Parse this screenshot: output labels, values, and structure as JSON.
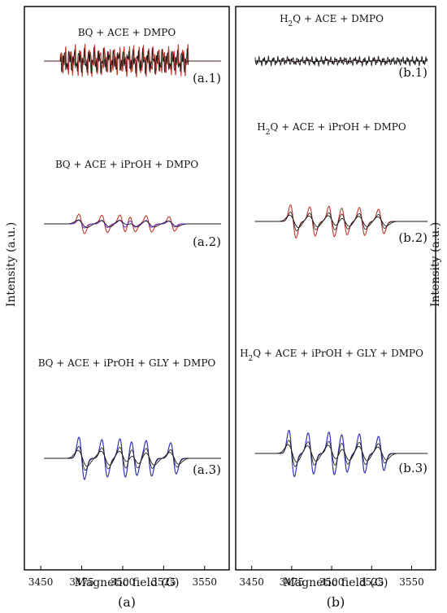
{
  "figure": {
    "ylabel": "Intensity (a.u.)",
    "xlabel": "Magnetic field (G)"
  },
  "colors": {
    "red": "#c0392b",
    "black": "#1a1a1a",
    "blue": "#1f3ad6",
    "purple": "#6a2bd8",
    "frame": "#000000"
  },
  "chart_data": [
    {
      "id": "a",
      "type": "line",
      "caption": "(a)",
      "xlabel": "Magnetic field (G)",
      "ylabel": "Intensity (a.u.)",
      "xlim": [
        3440,
        3565
      ],
      "xticks": [
        3450,
        3475,
        3500,
        3525,
        3550
      ],
      "xtick_labels": [
        "3450",
        "3475",
        "3500",
        "3525",
        "3550"
      ],
      "grid": false,
      "panels": [
        {
          "tag": "(a.1)",
          "condition": "BQ + ACE + DMPO",
          "pattern": "noise",
          "amp": 0.02,
          "lines": [
            3465,
            3479,
            3493,
            3507,
            3521,
            3535
          ]
        },
        {
          "tag": "(a.2)",
          "condition": "BQ + ACE + iPrOH + DMPO",
          "pattern": "sextet",
          "amp": 0.5,
          "lines": [
            3475,
            3489,
            3500,
            3506,
            3516,
            3530
          ]
        },
        {
          "tag": "(a.3)",
          "condition": "BQ + ACE + iPrOH + GLY + DMPO",
          "pattern": "sextet",
          "amp": 0.82,
          "lines": [
            3475,
            3489,
            3500,
            3507,
            3516,
            3531
          ]
        }
      ]
    },
    {
      "id": "b",
      "type": "line",
      "caption": "(b)",
      "xlabel": "Magnetic field (G)",
      "ylabel": "Intensity (a.u.)",
      "xlim": [
        3440,
        3565
      ],
      "xticks": [
        3450,
        3475,
        3500,
        3525,
        3550
      ],
      "xtick_labels": [
        "3450",
        "3475",
        "3500",
        "3525",
        "3550"
      ],
      "grid": false,
      "panels": [
        {
          "tag": "(b.1)",
          "condition_sub": [
            "H",
            "2",
            "Q + ACE + DMPO"
          ],
          "pattern": "sextet",
          "amp": 0.1,
          "lines": [
            3475,
            3487,
            3499,
            3508,
            3517,
            3530
          ]
        },
        {
          "tag": "(b.2)",
          "condition_sub": [
            "H",
            "2",
            "Q + ACE + iPrOH + DMPO"
          ],
          "pattern": "sextet",
          "amp": 0.85,
          "lines": [
            3476,
            3488,
            3500,
            3508,
            3519,
            3531
          ]
        },
        {
          "tag": "(b.3)",
          "condition_sub": [
            "H",
            "2",
            "Q + ACE + iPrOH + GLY + DMPO"
          ],
          "pattern": "sextet",
          "amp": 0.9,
          "lines": [
            3475,
            3487,
            3500,
            3508,
            3519,
            3531
          ]
        }
      ]
    }
  ]
}
